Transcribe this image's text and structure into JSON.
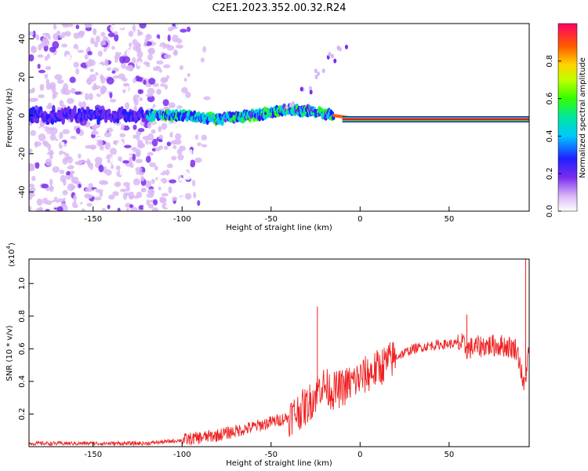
{
  "title": "C2E1.2023.352.00.32.R24",
  "chart_data": [
    {
      "type": "heatmap",
      "xlabel": "Height of straight line (km)",
      "ylabel": "Frequency (Hz)",
      "xlim": [
        -186,
        95
      ],
      "ylim": [
        -50,
        48
      ],
      "xticks": [
        -150,
        -100,
        -50,
        0,
        50
      ],
      "yticks": [
        -40,
        -20,
        0,
        20,
        40
      ],
      "grid": false,
      "description_values": {
        "noise_region_x": [
          -186,
          -100
        ],
        "signal_track": [
          {
            "x": -120,
            "y": 0
          },
          {
            "x": -100,
            "y": 0
          },
          {
            "x": -80,
            "y": -2
          },
          {
            "x": -60,
            "y": 0
          },
          {
            "x": -40,
            "y": 3
          },
          {
            "x": -25,
            "y": 2
          },
          {
            "x": -15,
            "y": 0
          },
          {
            "x": 0,
            "y": -2
          },
          {
            "x": 50,
            "y": -2
          },
          {
            "x": 95,
            "y": -2
          }
        ],
        "branch": [
          {
            "x": -40,
            "y": 5
          },
          {
            "x": -30,
            "y": 14
          },
          {
            "x": -22,
            "y": 22
          },
          {
            "x": -15,
            "y": 30
          },
          {
            "x": -10,
            "y": 35
          }
        ]
      },
      "colorbar": {
        "label": "Normalized spectral amplitude",
        "ticks": [
          "0.0",
          "0.2",
          "0.4",
          "0.6",
          "0.8"
        ],
        "range": [
          0,
          1
        ],
        "colormap": "rainbow"
      }
    },
    {
      "type": "line",
      "xlabel": "Height of straight line (km)",
      "ylabel": "SNR (10 * v/v)",
      "scale_label": "(x10",
      "scale_exp": "4",
      "scale_close": ")",
      "xlim": [
        -186,
        95
      ],
      "ylim": [
        0,
        1.15
      ],
      "xticks": [
        -150,
        -100,
        -50,
        0,
        50
      ],
      "yticks": [
        "0.2",
        "0.4",
        "0.6",
        "0.8",
        "1.0"
      ],
      "color": "#ee2222",
      "series": [
        {
          "x": [
            -186,
            -150,
            -120,
            -100,
            -80,
            -60,
            -40,
            -30,
            -25,
            -22,
            -15,
            -10,
            0,
            10,
            20,
            30,
            40,
            50,
            57,
            60,
            70,
            80,
            88,
            90,
            92,
            95
          ],
          "values": [
            0.02,
            0.02,
            0.02,
            0.04,
            0.07,
            0.12,
            0.18,
            0.25,
            0.32,
            0.38,
            0.34,
            0.36,
            0.42,
            0.48,
            0.55,
            0.6,
            0.62,
            0.63,
            0.63,
            0.6,
            0.62,
            0.62,
            0.6,
            0.5,
            0.35,
            0.6
          ],
          "annotations": [
            {
              "x": -24,
              "y": 0.86
            },
            {
              "x": 60,
              "y": 0.81
            },
            {
              "x": 93,
              "y": 1.15
            }
          ]
        }
      ]
    }
  ]
}
